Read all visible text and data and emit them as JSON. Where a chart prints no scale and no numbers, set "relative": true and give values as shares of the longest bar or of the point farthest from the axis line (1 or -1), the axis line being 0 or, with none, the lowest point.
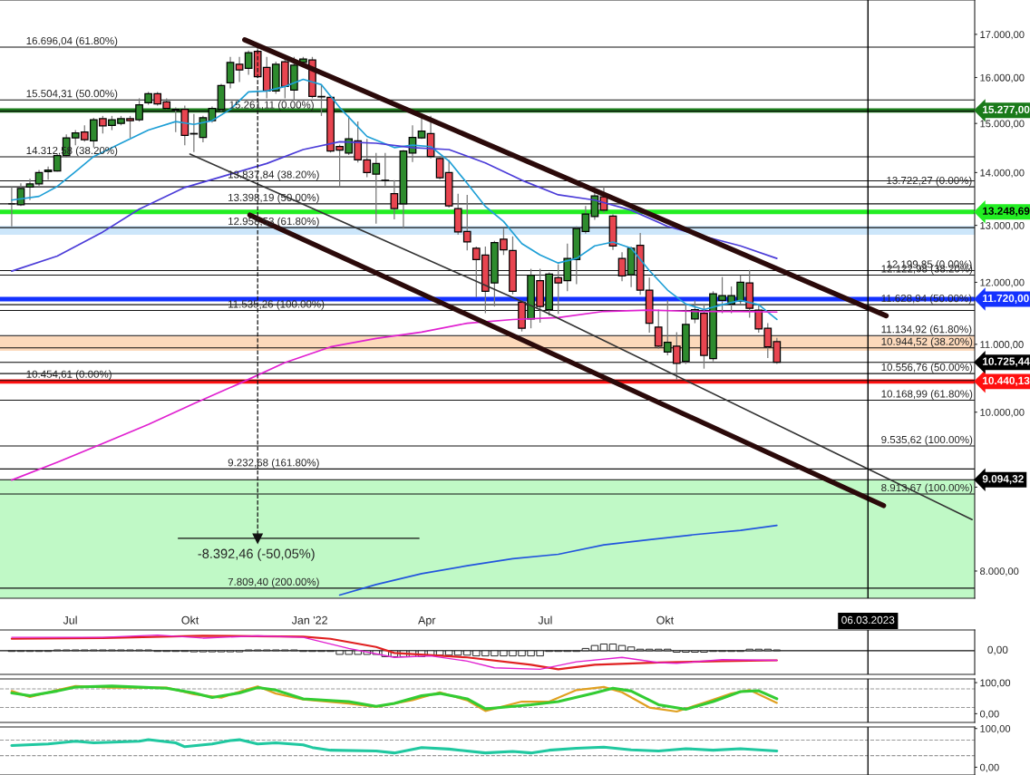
{
  "chart_data": [
    {
      "type": "candlestick",
      "log": "y",
      "ylim": [
        7700,
        17840
      ],
      "xlim": [
        "2021-05-08",
        "2023-05-27"
      ],
      "yticks": [
        {
          "value": 8000,
          "label": "8.000,00"
        },
        {
          "value": 9000,
          "label": null
        },
        {
          "value": 10000,
          "label": "10.000,00"
        },
        {
          "value": 11000,
          "label": "11.000,00"
        },
        {
          "value": 12000,
          "label": "12.000,00"
        },
        {
          "value": 13000,
          "label": "13.000,00"
        },
        {
          "value": 14000,
          "label": "14.000,00"
        },
        {
          "value": 15000,
          "label": "15.000,00"
        },
        {
          "value": 16000,
          "label": "16.000,00"
        },
        {
          "value": 17000,
          "label": "17.000,00"
        }
      ],
      "xticks": [
        {
          "value": "2021-07-01",
          "label": "Jul"
        },
        {
          "value": "2021-10-01",
          "label": "Okt"
        },
        {
          "value": "2022-01-01",
          "label": "Jan '22"
        },
        {
          "value": "2022-04-01",
          "label": "Apr"
        },
        {
          "value": "2022-07-01",
          "label": "Jul"
        },
        {
          "value": "2022-10-01",
          "label": "Okt"
        }
      ],
      "x": [
        "2021-05-17",
        "2021-05-24",
        "2021-05-31",
        "2021-06-07",
        "2021-06-14",
        "2021-06-21",
        "2021-06-28",
        "2021-07-05",
        "2021-07-12",
        "2021-07-19",
        "2021-07-26",
        "2021-08-02",
        "2021-08-09",
        "2021-08-16",
        "2021-08-23",
        "2021-08-30",
        "2021-09-06",
        "2021-09-13",
        "2021-09-20",
        "2021-09-27",
        "2021-10-04",
        "2021-10-11",
        "2021-10-18",
        "2021-10-25",
        "2021-11-01",
        "2021-11-08",
        "2021-11-15",
        "2021-11-22",
        "2021-11-29",
        "2021-12-06",
        "2021-12-13",
        "2021-12-20",
        "2021-12-27",
        "2022-01-03",
        "2022-01-10",
        "2022-01-17",
        "2022-01-24",
        "2022-01-31",
        "2022-02-07",
        "2022-02-14",
        "2022-02-21",
        "2022-02-28",
        "2022-03-07",
        "2022-03-14",
        "2022-03-21",
        "2022-03-28",
        "2022-04-04",
        "2022-04-11",
        "2022-04-18",
        "2022-04-25",
        "2022-05-02",
        "2022-05-09",
        "2022-05-16",
        "2022-05-23",
        "2022-05-30",
        "2022-06-06",
        "2022-06-13",
        "2022-06-20",
        "2022-06-27",
        "2022-07-04",
        "2022-07-11",
        "2022-07-18",
        "2022-07-25",
        "2022-08-01",
        "2022-08-08",
        "2022-08-15",
        "2022-08-22",
        "2022-08-29",
        "2022-09-05",
        "2022-09-12",
        "2022-09-19",
        "2022-09-26",
        "2022-10-03",
        "2022-10-10",
        "2022-10-17",
        "2022-10-24",
        "2022-10-31",
        "2022-11-07",
        "2022-11-14",
        "2022-11-21",
        "2022-11-28",
        "2022-12-05",
        "2022-12-12",
        "2022-12-19",
        "2022-12-26"
      ],
      "ohlc": [
        [
          13400,
          13720,
          12980,
          13400
        ],
        [
          13380,
          13790,
          13360,
          13690
        ],
        [
          13720,
          13880,
          13470,
          13780
        ],
        [
          13780,
          14050,
          13740,
          14000
        ],
        [
          14020,
          14120,
          13860,
          14050
        ],
        [
          14030,
          14370,
          14020,
          14340
        ],
        [
          14340,
          14770,
          14300,
          14700
        ],
        [
          14700,
          14860,
          14550,
          14800
        ],
        [
          14820,
          14960,
          14620,
          14660
        ],
        [
          14640,
          15120,
          14500,
          15080
        ],
        [
          15100,
          15160,
          14790,
          14950
        ],
        [
          14960,
          15160,
          14860,
          15080
        ],
        [
          15000,
          15160,
          14960,
          15100
        ],
        [
          15100,
          15160,
          14700,
          15060
        ],
        [
          15080,
          15540,
          15040,
          15400
        ],
        [
          15440,
          15680,
          15400,
          15640
        ],
        [
          15640,
          15680,
          15380,
          15420
        ],
        [
          15460,
          15540,
          15300,
          15320
        ],
        [
          15300,
          15340,
          14820,
          15290
        ],
        [
          15300,
          15380,
          14550,
          14750
        ],
        [
          14790,
          15200,
          14410,
          14780
        ],
        [
          14710,
          15160,
          14610,
          15120
        ],
        [
          15060,
          15360,
          15020,
          15320
        ],
        [
          15300,
          15860,
          15260,
          15820
        ],
        [
          15880,
          16470,
          15760,
          16340
        ],
        [
          16300,
          16470,
          15900,
          16170
        ],
        [
          16210,
          16620,
          16060,
          16570
        ],
        [
          16600,
          16770,
          15990,
          16020
        ],
        [
          16230,
          16470,
          15540,
          15700
        ],
        [
          15700,
          16360,
          15640,
          16300
        ],
        [
          16360,
          16470,
          15540,
          15800
        ],
        [
          15720,
          16470,
          15500,
          16280
        ],
        [
          16340,
          16470,
          16280,
          16420
        ],
        [
          16400,
          16470,
          15540,
          15580
        ],
        [
          15580,
          15840,
          15160,
          15570
        ],
        [
          15560,
          15600,
          14400,
          14430
        ],
        [
          14520,
          14560,
          13720,
          14450
        ],
        [
          14390,
          15160,
          14350,
          14680
        ],
        [
          14640,
          15040,
          14200,
          14250
        ],
        [
          14250,
          14680,
          13910,
          14000
        ],
        [
          13970,
          14390,
          13030,
          14180
        ],
        [
          13850,
          14390,
          13740,
          13840
        ],
        [
          13590,
          13850,
          13110,
          13310
        ],
        [
          13400,
          14450,
          12940,
          14430
        ],
        [
          14390,
          14960,
          14210,
          14710
        ],
        [
          14700,
          15200,
          14680,
          14840
        ],
        [
          14790,
          15160,
          14280,
          14320
        ],
        [
          14280,
          14320,
          13870,
          13900
        ],
        [
          14000,
          14250,
          13330,
          13360
        ],
        [
          13310,
          13590,
          12830,
          12880
        ],
        [
          12890,
          13570,
          12550,
          12700
        ],
        [
          12590,
          12620,
          11750,
          12390
        ],
        [
          12470,
          12620,
          11490,
          11850
        ],
        [
          11990,
          12720,
          11600,
          12690
        ],
        [
          12750,
          12940,
          12470,
          12560
        ],
        [
          12550,
          12800,
          11800,
          11850
        ],
        [
          11670,
          11700,
          11200,
          11250
        ],
        [
          11400,
          12230,
          11250,
          12120
        ],
        [
          12030,
          12230,
          11340,
          11600
        ],
        [
          11550,
          12170,
          11450,
          12140
        ],
        [
          12080,
          12310,
          11480,
          11990
        ],
        [
          12030,
          12670,
          11850,
          12410
        ],
        [
          12390,
          12980,
          11970,
          12940
        ],
        [
          12890,
          13360,
          12850,
          13210
        ],
        [
          13160,
          13650,
          13100,
          13550
        ],
        [
          13530,
          13720,
          13230,
          13280
        ],
        [
          13170,
          13200,
          12560,
          12630
        ],
        [
          12410,
          12520,
          12020,
          12110
        ],
        [
          12130,
          12620,
          11920,
          12590
        ],
        [
          12640,
          12860,
          11790,
          11870
        ],
        [
          11870,
          12080,
          11180,
          11330
        ],
        [
          11270,
          11550,
          10930,
          10970
        ],
        [
          10880,
          11700,
          10830,
          11030
        ],
        [
          10970,
          11190,
          10470,
          10710
        ],
        [
          10740,
          11640,
          10700,
          11310
        ],
        [
          11400,
          11700,
          11330,
          11550
        ],
        [
          11490,
          11640,
          10630,
          10830
        ],
        [
          10780,
          11850,
          10740,
          11810
        ],
        [
          11700,
          12090,
          11490,
          11780
        ],
        [
          11640,
          11930,
          11490,
          11780
        ],
        [
          11690,
          12120,
          11640,
          12000
        ],
        [
          11990,
          12210,
          11420,
          11570
        ],
        [
          11540,
          11640,
          11180,
          11240
        ],
        [
          11250,
          11330,
          10790,
          10960
        ],
        [
          11040,
          11100,
          10700,
          10725.44
        ]
      ],
      "colors": [
        "#000000",
        "#2e8b2e",
        "#2e8b2e",
        "#2e8b2e",
        "#2e8b2e",
        "#2e8b2e",
        "#2e8b2e",
        "#2e8b2e",
        "#e84550",
        "#2e8b2e",
        "#e84550",
        "#2e8b2e",
        "#2e8b2e",
        "#e84550",
        "#2e8b2e",
        "#2e8b2e",
        "#e84550",
        "#e84550",
        "#000000",
        "#e84550",
        "#000000",
        "#2e8b2e",
        "#2e8b2e",
        "#2e8b2e",
        "#2e8b2e",
        "#e84550",
        "#2e8b2e",
        "#e84550",
        "#e84550",
        "#2e8b2e",
        "#e84550",
        "#2e8b2e",
        "#2e8b2e",
        "#e84550",
        "#000000",
        "#e84550",
        "#e84550",
        "#2e8b2e",
        "#e84550",
        "#e84550",
        "#2e8b2e",
        "#000000",
        "#e84550",
        "#2e8b2e",
        "#2e8b2e",
        "#2e8b2e",
        "#e84550",
        "#e84550",
        "#e84550",
        "#e84550",
        "#e84550",
        "#e84550",
        "#e84550",
        "#2e8b2e",
        "#e84550",
        "#e84550",
        "#e84550",
        "#2e8b2e",
        "#e84550",
        "#2e8b2e",
        "#e84550",
        "#2e8b2e",
        "#2e8b2e",
        "#2e8b2e",
        "#2e8b2e",
        "#e84550",
        "#e84550",
        "#e84550",
        "#2e8b2e",
        "#e84550",
        "#e84550",
        "#e84550",
        "#2e8b2e",
        "#e84550",
        "#2e8b2e",
        "#2e8b2e",
        "#e84550",
        "#2e8b2e",
        "#2e8b2e",
        "#2e8b2e",
        "#2e8b2e",
        "#e84550",
        "#e84550",
        "#e84550",
        "#e84550"
      ],
      "series": [
        {
          "type": "line",
          "color": "#1e9fd6",
          "x": [
            "2021-05-17",
            "2021-06-07",
            "2021-06-21",
            "2021-07-05",
            "2021-07-19",
            "2021-08-09",
            "2021-08-30",
            "2021-09-20",
            "2021-10-04",
            "2021-10-18",
            "2021-11-01",
            "2021-11-15",
            "2021-11-29",
            "2021-12-13",
            "2021-12-27",
            "2022-01-10",
            "2022-01-24",
            "2022-02-14",
            "2022-03-07",
            "2022-03-21",
            "2022-04-04",
            "2022-04-18",
            "2022-05-02",
            "2022-05-16",
            "2022-05-30",
            "2022-06-13",
            "2022-06-27",
            "2022-07-11",
            "2022-07-25",
            "2022-08-08",
            "2022-08-22",
            "2022-09-05",
            "2022-09-19",
            "2022-10-03",
            "2022-10-17",
            "2022-10-31",
            "2022-11-14",
            "2022-11-28",
            "2022-12-12",
            "2022-12-26"
          ],
          "values": [
            13470,
            13540,
            13730,
            14020,
            14320,
            14590,
            14860,
            15040,
            14980,
            15060,
            15300,
            15680,
            15700,
            15800,
            15960,
            15840,
            15340,
            14730,
            14500,
            14550,
            14520,
            14230,
            13790,
            13350,
            13070,
            12670,
            12470,
            12330,
            12410,
            12630,
            12700,
            12590,
            12200,
            11870,
            11640,
            11550,
            11630,
            11700,
            11630,
            11390
          ]
        },
        {
          "type": "line",
          "color": "#4b3cd8",
          "x": [
            "2021-05-17",
            "2021-06-21",
            "2021-07-26",
            "2021-08-23",
            "2021-09-27",
            "2021-11-01",
            "2021-11-29",
            "2021-12-27",
            "2022-01-24",
            "2022-02-21",
            "2022-03-21",
            "2022-04-18",
            "2022-05-16",
            "2022-06-13",
            "2022-07-11",
            "2022-08-08",
            "2022-09-05",
            "2022-10-03",
            "2022-10-31",
            "2022-11-28",
            "2022-12-26"
          ],
          "values": [
            12190,
            12450,
            12880,
            13300,
            13710,
            13970,
            14180,
            14460,
            14620,
            14590,
            14500,
            14460,
            14190,
            13850,
            13570,
            13470,
            13280,
            12980,
            12800,
            12630,
            12410
          ]
        },
        {
          "type": "line",
          "color": "#e020d0",
          "x": [
            "2021-05-17",
            "2021-06-21",
            "2021-07-26",
            "2021-08-30",
            "2021-10-04",
            "2021-11-08",
            "2021-12-13",
            "2022-01-17",
            "2022-02-21",
            "2022-03-28",
            "2022-05-02",
            "2022-06-06",
            "2022-07-11",
            "2022-08-15",
            "2022-09-19",
            "2022-10-24",
            "2022-11-28",
            "2022-12-26"
          ],
          "values": [
            9090,
            9320,
            9570,
            9830,
            10120,
            10410,
            10720,
            10960,
            11090,
            11190,
            11330,
            11390,
            11420,
            11520,
            11540,
            11520,
            11520,
            11510
          ]
        },
        {
          "type": "line",
          "color": "#2255dd",
          "x": [
            "2022-01-24",
            "2022-02-21",
            "2022-03-28",
            "2022-05-02",
            "2022-06-06",
            "2022-07-11",
            "2022-08-15",
            "2022-09-19",
            "2022-10-24",
            "2022-11-28",
            "2022-12-26"
          ],
          "values": [
            7735,
            7850,
            7970,
            8060,
            8140,
            8190,
            8300,
            8360,
            8420,
            8470,
            8530
          ]
        },
        {
          "type": "line",
          "color": "#2b0a0a",
          "x": [
            "2021-11-12",
            "2023-03-20"
          ],
          "values": [
            16870,
            11450
          ]
        },
        {
          "type": "line",
          "color": "#2b0a0a",
          "x": [
            "2021-11-16",
            "2023-03-18"
          ],
          "values": [
            13190,
            8770
          ]
        },
        {
          "type": "line",
          "color": "#333333",
          "x": [
            "2021-10-01",
            "2022-06-30",
            "2023-05-25"
          ],
          "values": [
            14370,
            11520,
            8600
          ]
        },
        {
          "type": "line",
          "color": "#111111",
          "line_style": "dashed",
          "x": [
            "2021-11-22",
            "2021-11-22"
          ],
          "values": [
            16770,
            8375
          ]
        },
        {
          "type": "line",
          "color": "#111111",
          "line_style": "solid",
          "x": [
            "2021-09-22",
            "2022-03-26"
          ],
          "values": [
            8375,
            8375
          ]
        }
      ],
      "bands": [
        {
          "axis": "y",
          "from": 7700,
          "to": 9094.32,
          "color": "#c0f9c6"
        },
        {
          "axis": "y",
          "from": 12830,
          "to": 12990,
          "color": "#cce6fa"
        },
        {
          "axis": "y",
          "from": 10900,
          "to": 11130,
          "color": "#fcd9bb"
        }
      ],
      "ref_lines": [
        {
          "axis": "y",
          "value": 16696.04
        },
        {
          "axis": "y",
          "value": 15504.31
        },
        {
          "axis": "y",
          "value": 14312.58
        },
        {
          "axis": "y",
          "value": 10454.61
        },
        {
          "axis": "y",
          "value": 15261.11
        },
        {
          "axis": "y",
          "value": 13837.84
        },
        {
          "axis": "y",
          "value": 13398.19
        },
        {
          "axis": "y",
          "value": 12958.53
        },
        {
          "axis": "y",
          "value": 11535.26
        },
        {
          "axis": "y",
          "value": 9232.68
        },
        {
          "axis": "y",
          "value": 7809.4
        },
        {
          "axis": "y",
          "value": 13722.27
        },
        {
          "axis": "y",
          "value": 12199.85
        },
        {
          "axis": "y",
          "value": 12122.98
        },
        {
          "axis": "y",
          "value": 11628.94
        },
        {
          "axis": "y",
          "value": 11134.92
        },
        {
          "axis": "y",
          "value": 10944.52
        },
        {
          "axis": "y",
          "value": 10556.76
        },
        {
          "axis": "y",
          "value": 10168.99
        },
        {
          "axis": "y",
          "value": 9535.62
        },
        {
          "axis": "y",
          "value": 8913.67
        },
        {
          "axis": "y",
          "value": 15277.0,
          "label": "15.277,00",
          "color": "#1a7a1a"
        },
        {
          "axis": "y",
          "value": 13248.69,
          "label": "13.248,69",
          "color": "#22ee22"
        },
        {
          "axis": "y",
          "value": 11720.0,
          "label": "11.720,00",
          "color": "#1432ff"
        },
        {
          "axis": "y",
          "value": 10440.13,
          "label": "10.440,13",
          "color": "#ff1010"
        },
        {
          "axis": "y",
          "value": 10725.44,
          "label": "10.725,44",
          "color": "#000000"
        },
        {
          "axis": "y",
          "value": 9094.32,
          "label": "9.094,32",
          "color": "#000000"
        },
        {
          "axis": "x",
          "value": "2023-03-06",
          "label": "06.03.2023",
          "color": "#000000"
        }
      ],
      "annotations": [
        {
          "text": "16.696,04 (61.80%)",
          "x": "2021-05-28",
          "y": 16696.04
        },
        {
          "text": "15.504,31 (50.00%)",
          "x": "2021-05-28",
          "y": 15504.31
        },
        {
          "text": "14.312,58 (38.20%)",
          "x": "2021-05-28",
          "y": 14312.58
        },
        {
          "text": "10.454,61 (0.00%)",
          "x": "2021-05-28",
          "y": 10454.61
        },
        {
          "text": "15.261,11 (0.00%)",
          "x": "2021-10-31",
          "y": 15261.11
        },
        {
          "text": "13.837,84 (38.20%)",
          "x": "2021-10-30",
          "y": 13837.84
        },
        {
          "text": "13.398,19 (50.00%)",
          "x": "2021-10-30",
          "y": 13398.19
        },
        {
          "text": "12.958,53 (61.80%)",
          "x": "2021-10-30",
          "y": 12958.53
        },
        {
          "text": "11.535,26 (100.00%)",
          "x": "2021-10-30",
          "y": 11535.26
        },
        {
          "text": "9.232,68 (161.80%)",
          "x": "2021-10-30",
          "y": 9232.68
        },
        {
          "text": "7.809,40 (200.00%)",
          "x": "2021-10-30",
          "y": 7809.4
        },
        {
          "text": "13.722,27 (0.00%)",
          "x": "2023-03-20",
          "y": 13722.27
        },
        {
          "text": "12.199,85 (0.00%)",
          "x": "2023-03-20",
          "y": 12199.85
        },
        {
          "text": "12.122,98 (38.20%)",
          "x": "2023-03-16",
          "y": 12122.98
        },
        {
          "text": "11.628,94 (50.00%)",
          "x": "2023-03-16",
          "y": 11628.94
        },
        {
          "text": "11.134,92 (61.80%)",
          "x": "2023-03-16",
          "y": 11134.92
        },
        {
          "text": "10.944,52 (38.20%)",
          "x": "2023-03-16",
          "y": 10944.52
        },
        {
          "text": "10.556,76 (50.00%)",
          "x": "2023-03-16",
          "y": 10556.76
        },
        {
          "text": "10.168,99 (61.80%)",
          "x": "2023-03-16",
          "y": 10168.99
        },
        {
          "text": "9.535,62 (100.00%)",
          "x": "2023-03-16",
          "y": 9535.62
        },
        {
          "text": "8.913,67 (100.00%)",
          "x": "2023-03-16",
          "y": 8913.67
        },
        "-8.392,46 (-50,05%)"
      ]
    },
    {
      "type": "line",
      "relative": true,
      "tick_labels": "y",
      "xlim": [
        "2021-05-08",
        "2023-05-27"
      ],
      "x": [
        "2021-05-17",
        "2021-05-24",
        "2021-05-31",
        "2021-06-07",
        "2021-06-14",
        "2021-06-21",
        "2021-06-28",
        "2021-07-05",
        "2021-07-12",
        "2021-07-19",
        "2021-07-26",
        "2021-08-02",
        "2021-08-09",
        "2021-08-16",
        "2021-08-23",
        "2021-08-30",
        "2021-09-06",
        "2021-09-13",
        "2021-09-20",
        "2021-09-27",
        "2021-10-04",
        "2021-10-11",
        "2021-10-18",
        "2021-10-25",
        "2021-11-01",
        "2021-11-08",
        "2021-11-15",
        "2021-11-22",
        "2021-11-29",
        "2021-12-06",
        "2021-12-13",
        "2021-12-20",
        "2021-12-27",
        "2022-01-03",
        "2022-01-10",
        "2022-01-17",
        "2022-01-24",
        "2022-01-31",
        "2022-02-07",
        "2022-02-14",
        "2022-02-21",
        "2022-02-28",
        "2022-03-07",
        "2022-03-14",
        "2022-03-21",
        "2022-03-28",
        "2022-04-04",
        "2022-04-11",
        "2022-04-18",
        "2022-04-25",
        "2022-05-02",
        "2022-05-09",
        "2022-05-16",
        "2022-05-23",
        "2022-05-30",
        "2022-06-06",
        "2022-06-13",
        "2022-06-20",
        "2022-06-27",
        "2022-07-04",
        "2022-07-11",
        "2022-07-18",
        "2022-07-25",
        "2022-08-01",
        "2022-08-08",
        "2022-08-15",
        "2022-08-22",
        "2022-08-29",
        "2022-09-05",
        "2022-09-12",
        "2022-09-19",
        "2022-09-26",
        "2022-10-03",
        "2022-10-10",
        "2022-10-17",
        "2022-10-24",
        "2022-10-31",
        "2022-11-07",
        "2022-11-14",
        "2022-11-21",
        "2022-11-28",
        "2022-12-05",
        "2022-12-12",
        "2022-12-19",
        "2022-12-26"
      ],
      "series": [
        {
          "type": "bar",
          "color": "#ffffff",
          "values": [
            -0.04,
            -0.04,
            -0.04,
            -0.04,
            -0.04,
            0.04,
            0.04,
            0.04,
            0.04,
            0.04,
            0.04,
            0.04,
            0.04,
            0.04,
            0.04,
            0.04,
            -0.04,
            -0.04,
            -0.04,
            -0.04,
            -0.06,
            -0.06,
            -0.06,
            -0.06,
            -0.06,
            -0.06,
            0.04,
            0.04,
            0.04,
            0.04,
            0.04,
            0.04,
            -0.04,
            -0.04,
            -0.04,
            -0.04,
            -0.2,
            -0.2,
            -0.2,
            -0.2,
            -0.2,
            -0.32,
            -0.32,
            -0.32,
            -0.32,
            -0.32,
            -0.24,
            -0.24,
            -0.24,
            -0.24,
            -0.24,
            -0.28,
            -0.28,
            -0.28,
            -0.28,
            -0.28,
            -0.28,
            -0.28,
            -0.28,
            -0.04,
            -0.04,
            -0.04,
            -0.04,
            0.12,
            0.28,
            0.36,
            0.36,
            0.28,
            0.2,
            0.08,
            0.08,
            0.08,
            0.08,
            -0.08,
            -0.08,
            -0.08,
            -0.08,
            -0.04,
            -0.04,
            -0.04,
            -0.04,
            0.08,
            0.08,
            0.08,
            0.04
          ]
        },
        {
          "type": "line",
          "color": "#e02020",
          "x": [
            "2021-05-17",
            "2021-07-26",
            "2021-10-11",
            "2021-12-27",
            "2022-01-17",
            "2022-02-21",
            "2022-03-07",
            "2022-05-02",
            "2022-06-20",
            "2022-07-11",
            "2022-08-08",
            "2022-09-26",
            "2022-11-14",
            "2022-12-26"
          ],
          "values": [
            0.64,
            0.68,
            0.8,
            0.76,
            0.64,
            0.2,
            -0.12,
            -0.36,
            -0.76,
            -1,
            -0.76,
            -0.64,
            -0.56,
            -0.52
          ]
        },
        {
          "type": "line",
          "color": "#e020d0",
          "x": [
            "2021-05-17",
            "2021-07-26",
            "2021-09-06",
            "2021-10-11",
            "2021-11-22",
            "2021-12-27",
            "2022-01-31",
            "2022-03-07",
            "2022-04-04",
            "2022-05-02",
            "2022-05-23",
            "2022-06-27",
            "2022-07-25",
            "2022-08-29",
            "2022-09-26",
            "2022-10-10",
            "2022-11-14",
            "2022-12-26"
          ],
          "values": [
            0.72,
            0.72,
            0.84,
            0.68,
            0.8,
            0.72,
            0.12,
            -0.36,
            -0.28,
            -0.56,
            -0.92,
            -1,
            -0.6,
            -0.36,
            -0.64,
            -0.68,
            -0.48,
            -0.52
          ]
        }
      ],
      "ref_lines": [
        {
          "axis": "y",
          "value": 0,
          "label": "0,00"
        },
        {
          "axis": "x",
          "value": "2023-03-06"
        }
      ]
    },
    {
      "type": "line",
      "tick_labels": "y",
      "xlim": [
        "2021-05-08",
        "2023-05-27"
      ],
      "ylim": [
        -28,
        112
      ],
      "yticks": [
        {
          "value": 100,
          "label": "100,00"
        },
        {
          "value": 0,
          "label": "0,00"
        }
      ],
      "series": [
        {
          "color": "#33cc33",
          "x": [
            "2021-05-17",
            "2021-05-31",
            "2021-06-21",
            "2021-07-05",
            "2021-08-02",
            "2021-09-13",
            "2021-10-04",
            "2021-10-18",
            "2021-11-08",
            "2021-11-22",
            "2021-12-06",
            "2021-12-27",
            "2022-01-31",
            "2022-02-21",
            "2022-03-07",
            "2022-03-28",
            "2022-04-11",
            "2022-05-02",
            "2022-05-16",
            "2022-06-20",
            "2022-07-11",
            "2022-08-08",
            "2022-08-22",
            "2022-09-05",
            "2022-09-26",
            "2022-10-17",
            "2022-11-07",
            "2022-11-28",
            "2022-12-12",
            "2022-12-26"
          ],
          "values": [
            67,
            58,
            73,
            86,
            89,
            82,
            67,
            52,
            67,
            84,
            76,
            48,
            39,
            24,
            33,
            58,
            65,
            48,
            16,
            29,
            39,
            67,
            82,
            73,
            29,
            14,
            39,
            71,
            74,
            48
          ]
        },
        {
          "color": "#e0a020",
          "x": [
            "2021-05-17",
            "2021-05-31",
            "2021-06-21",
            "2021-07-05",
            "2021-08-02",
            "2021-09-13",
            "2021-10-04",
            "2021-10-25",
            "2021-11-15",
            "2021-11-22",
            "2021-12-06",
            "2021-12-27",
            "2022-01-31",
            "2022-02-21",
            "2022-03-21",
            "2022-04-11",
            "2022-05-02",
            "2022-05-16",
            "2022-06-13",
            "2022-07-04",
            "2022-07-25",
            "2022-08-15",
            "2022-08-29",
            "2022-09-19",
            "2022-10-10",
            "2022-10-31",
            "2022-11-21",
            "2022-12-05",
            "2022-12-26"
          ],
          "values": [
            73,
            54,
            76,
            89,
            84,
            84,
            63,
            52,
            80,
            88,
            65,
            46,
            33,
            22,
            44,
            69,
            43,
            9,
            39,
            39,
            76,
            86,
            69,
            20,
            7,
            35,
            65,
            76,
            35
          ]
        }
      ],
      "ref_lines": [
        {
          "axis": "y",
          "value": 80,
          "color": "#999999",
          "line_style": "dashed"
        },
        {
          "axis": "y",
          "value": 20,
          "color": "#999999",
          "line_style": "dashed"
        },
        {
          "axis": "x",
          "value": "2023-03-06"
        }
      ]
    },
    {
      "type": "line",
      "tick_labels": "y",
      "xlim": [
        "2021-05-08",
        "2023-05-27"
      ],
      "ylim": [
        -20,
        104
      ],
      "yticks": [
        {
          "value": 100,
          "label": "100,00"
        },
        {
          "value": 0,
          "label": "0,00"
        }
      ],
      "series": [
        {
          "color": "#20c8a0",
          "x": [
            "2021-05-17",
            "2021-06-14",
            "2021-07-05",
            "2021-07-19",
            "2021-08-23",
            "2021-08-30",
            "2021-09-20",
            "2021-09-27",
            "2021-10-18",
            "2021-11-01",
            "2021-11-08",
            "2021-11-22",
            "2021-12-06",
            "2021-12-27",
            "2022-01-03",
            "2022-01-17",
            "2022-02-21",
            "2022-03-07",
            "2022-03-28",
            "2022-04-18",
            "2022-05-16",
            "2022-06-06",
            "2022-06-20",
            "2022-07-04",
            "2022-07-25",
            "2022-08-15",
            "2022-09-05",
            "2022-09-26",
            "2022-10-17",
            "2022-11-07",
            "2022-11-28",
            "2022-12-26"
          ],
          "values": [
            56,
            60,
            67,
            63,
            67,
            71,
            63,
            53,
            60,
            69,
            71,
            60,
            63,
            58,
            51,
            44,
            42,
            37,
            51,
            47,
            37,
            41,
            37,
            44,
            49,
            52,
            45,
            42,
            48,
            44,
            48,
            42
          ]
        }
      ],
      "ref_lines": [
        {
          "axis": "y",
          "value": 70,
          "color": "#999999",
          "line_style": "dashed"
        },
        {
          "axis": "y",
          "value": 30,
          "color": "#999999",
          "line_style": "dashed"
        },
        {
          "axis": "x",
          "value": "2023-03-06"
        }
      ]
    }
  ]
}
